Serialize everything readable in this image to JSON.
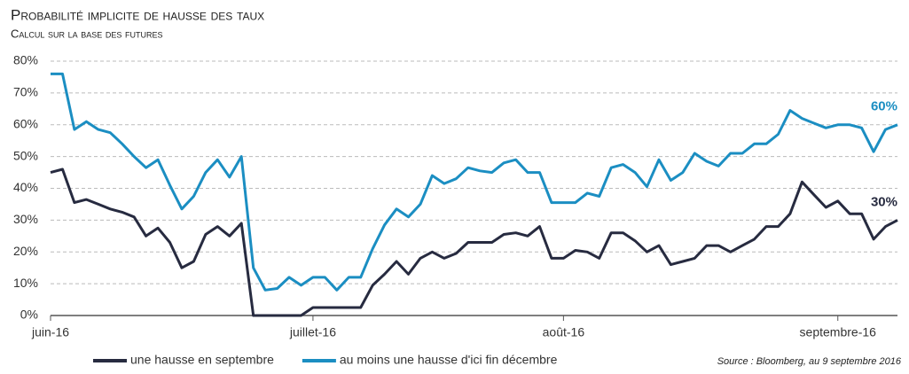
{
  "chart_data": {
    "type": "line",
    "title": "Probabilité implicite de hausse des taux",
    "subtitle": "Calcul sur la base des futures",
    "source": "Source : Bloomberg, au 9 septembre 2016",
    "categories": [
      "juin-16",
      null,
      null,
      null,
      null,
      null,
      null,
      null,
      null,
      null,
      null,
      null,
      null,
      null,
      null,
      null,
      null,
      null,
      null,
      null,
      null,
      null,
      "juillet-16",
      null,
      null,
      null,
      null,
      null,
      null,
      null,
      null,
      null,
      null,
      null,
      null,
      null,
      null,
      null,
      null,
      null,
      null,
      null,
      null,
      "août-16",
      null,
      null,
      null,
      null,
      null,
      null,
      null,
      null,
      null,
      null,
      null,
      null,
      null,
      null,
      null,
      null,
      null,
      null,
      null,
      null,
      null,
      null,
      "septembre-16",
      null,
      null,
      null,
      null,
      null
    ],
    "series": [
      {
        "name": "une hausse en septembre",
        "color": "#272b40",
        "values": [
          45,
          46,
          35.5,
          36.5,
          35,
          33.5,
          32.5,
          31,
          25,
          27.5,
          23,
          15,
          17,
          25.5,
          28,
          25,
          29,
          0,
          0,
          0,
          0,
          0,
          2.5,
          2.5,
          2.5,
          2.5,
          2.5,
          9.5,
          13,
          17,
          13,
          18,
          20,
          18,
          19.5,
          23,
          23,
          23,
          25.5,
          26,
          25,
          28,
          18,
          18,
          20.5,
          20,
          18,
          26,
          26,
          23.5,
          20,
          22,
          16,
          17,
          18,
          22,
          22,
          20,
          22,
          24,
          28,
          28,
          32,
          42,
          38,
          34,
          36,
          32,
          32,
          24,
          28,
          30
        ],
        "value_labels": [
          null,
          null,
          null,
          null,
          null,
          null,
          null,
          null,
          null,
          null,
          null,
          null,
          null,
          null,
          null,
          null,
          null,
          null,
          null,
          null,
          null,
          null,
          null,
          null,
          null,
          null,
          null,
          null,
          null,
          null,
          null,
          null,
          null,
          null,
          null,
          null,
          null,
          null,
          null,
          null,
          null,
          null,
          null,
          null,
          null,
          null,
          null,
          null,
          null,
          null,
          null,
          null,
          null,
          null,
          null,
          null,
          null,
          null,
          null,
          null,
          null,
          null,
          null,
          null,
          null,
          null,
          null,
          null,
          null,
          null,
          null,
          "30%"
        ]
      },
      {
        "name": "au moins une hausse d'ici fin décembre",
        "color": "#1b8ec2",
        "values": [
          76,
          76,
          58.5,
          61,
          58.5,
          57.5,
          54,
          50,
          46.5,
          49,
          41,
          33.5,
          37.5,
          45,
          49,
          43.5,
          50,
          15,
          8,
          8.5,
          12,
          9.5,
          12,
          12,
          8,
          12,
          12,
          21,
          28.5,
          33.5,
          31,
          35,
          44,
          41.5,
          43,
          46.5,
          45.5,
          45,
          48,
          49,
          45,
          45,
          35.5,
          35.5,
          35.5,
          38.5,
          37.5,
          46.5,
          47.5,
          45,
          40.5,
          49,
          42.5,
          45,
          51,
          48.5,
          47,
          51,
          51,
          54,
          54,
          57,
          64.5,
          62,
          60.5,
          59,
          60,
          60,
          59,
          51.5,
          58.5,
          60
        ],
        "value_labels": [
          null,
          null,
          null,
          null,
          null,
          null,
          null,
          null,
          null,
          null,
          null,
          null,
          null,
          null,
          null,
          null,
          null,
          null,
          null,
          null,
          null,
          null,
          null,
          null,
          null,
          null,
          null,
          null,
          null,
          null,
          null,
          null,
          null,
          null,
          null,
          null,
          null,
          null,
          null,
          null,
          null,
          null,
          null,
          null,
          null,
          null,
          null,
          null,
          null,
          null,
          null,
          null,
          null,
          null,
          null,
          null,
          null,
          null,
          null,
          null,
          null,
          null,
          null,
          null,
          null,
          null,
          null,
          null,
          null,
          null,
          null,
          "60%"
        ]
      }
    ],
    "ylim": [
      0,
      80
    ],
    "yticks": [
      {
        "value": 0,
        "label": "0%"
      },
      {
        "value": 10,
        "label": "10%"
      },
      {
        "value": 20,
        "label": "20%"
      },
      {
        "value": 30,
        "label": "30%"
      },
      {
        "value": 40,
        "label": "40%"
      },
      {
        "value": 50,
        "label": "50%"
      },
      {
        "value": 60,
        "label": "60%"
      },
      {
        "value": 70,
        "label": "70%"
      },
      {
        "value": 80,
        "label": "80%"
      }
    ],
    "grid": true
  }
}
